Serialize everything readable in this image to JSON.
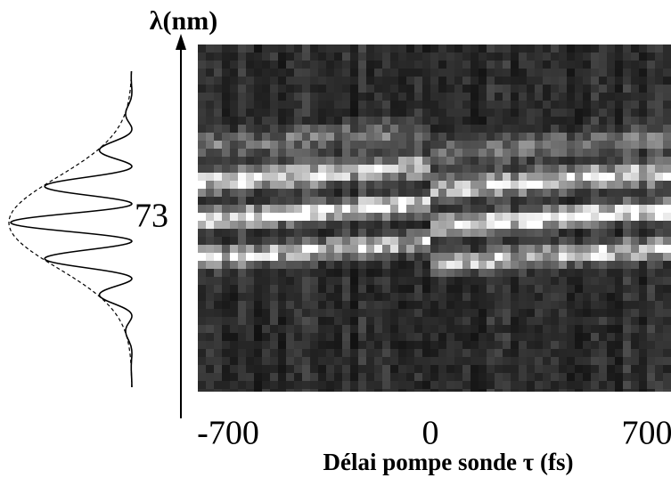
{
  "y_axis": {
    "label": "λ(nm)",
    "center_label": "73"
  },
  "x_axis": {
    "label": "Délai pompe sonde τ (fs)",
    "ticks": [
      "-700",
      "0",
      "700"
    ]
  }
}
